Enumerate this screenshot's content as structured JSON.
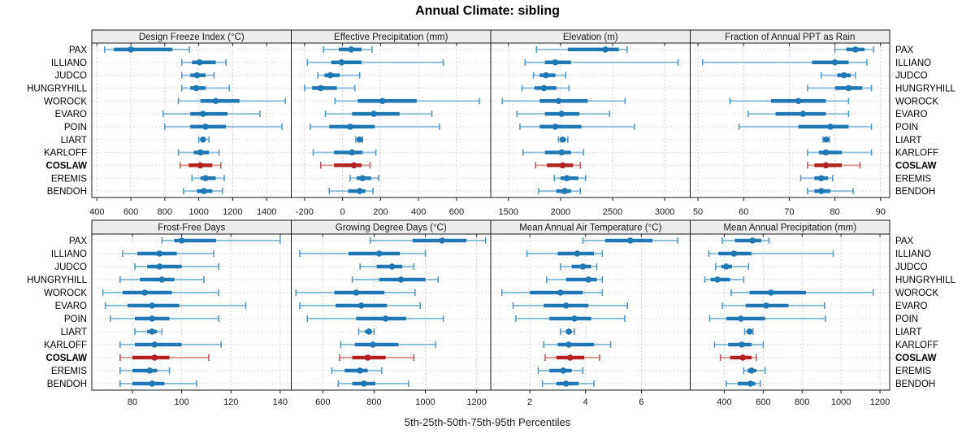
{
  "title": "Annual Climate: sibling",
  "footer": "5th-25th-50th-75th-95th Percentiles",
  "highlight_station": "COSLAW",
  "colors": {
    "series": "#1f77b4",
    "series_whisker": "#90bedd",
    "series_cap": "#4d94c6",
    "highlight": "#b22222",
    "highlight_whisker": "#dc9a96",
    "highlight_cap": "#c0504d",
    "header_bg": "#ececec",
    "panel_border": "#1a1a1a",
    "grid": "#c9c9c9",
    "row_grid": "#d6d6d6",
    "tick_text": "#1a1a1a"
  },
  "chart_data": {
    "type": "scatter",
    "subtype": "trellis-percentile-dotplot",
    "percentile_labels": [
      "5th",
      "25th",
      "50th",
      "75th",
      "95th"
    ],
    "legend_position": "none",
    "grid": "dotted",
    "categories": [
      "PAX",
      "ILLIANO",
      "JUDCO",
      "HUNGRYHILL",
      "WOROCK",
      "EVARO",
      "POIN",
      "LIART",
      "KARLOFF",
      "COSLAW",
      "EREMIS",
      "BENDOH"
    ],
    "panels": [
      {
        "title": "Design Freeze Index (°C)",
        "row": 0,
        "col": 0,
        "xlim": [
          370,
          1545
        ],
        "xticks": [
          400,
          600,
          800,
          1000,
          1200,
          1400
        ],
        "values": [
          [
            445,
            500,
            600,
            845,
            945
          ],
          [
            900,
            960,
            1005,
            1100,
            1160
          ],
          [
            900,
            950,
            990,
            1040,
            1090
          ],
          [
            900,
            950,
            985,
            1040,
            1180
          ],
          [
            880,
            1010,
            1100,
            1240,
            1510
          ],
          [
            790,
            950,
            1025,
            1170,
            1360
          ],
          [
            800,
            950,
            1040,
            1160,
            1490
          ],
          [
            1000,
            1015,
            1025,
            1040,
            1060
          ],
          [
            880,
            970,
            1010,
            1060,
            1120
          ],
          [
            890,
            940,
            1010,
            1080,
            1130
          ],
          [
            960,
            1010,
            1040,
            1100,
            1150
          ],
          [
            910,
            990,
            1030,
            1080,
            1140
          ]
        ]
      },
      {
        "title": "Effective Precipitation (mm)",
        "row": 0,
        "col": 1,
        "xlim": [
          -270,
          780
        ],
        "xticks": [
          -200,
          0,
          200,
          400,
          600
        ],
        "values": [
          [
            -100,
            -20,
            45,
            100,
            155
          ],
          [
            -185,
            -60,
            -5,
            100,
            530
          ],
          [
            -130,
            -95,
            -65,
            -15,
            90
          ],
          [
            -200,
            -160,
            -115,
            -30,
            65
          ],
          [
            -40,
            80,
            210,
            390,
            720
          ],
          [
            -90,
            50,
            165,
            300,
            470
          ],
          [
            -170,
            -70,
            40,
            170,
            510
          ],
          [
            70,
            82,
            90,
            98,
            105
          ],
          [
            -155,
            -45,
            50,
            105,
            175
          ],
          [
            -115,
            -45,
            60,
            100,
            145
          ],
          [
            40,
            75,
            105,
            150,
            190
          ],
          [
            -70,
            30,
            90,
            120,
            160
          ]
        ]
      },
      {
        "title": "Elevation (m)",
        "row": 0,
        "col": 2,
        "xlim": [
          1330,
          3245
        ],
        "xticks": [
          1500,
          2000,
          2500,
          3000
        ],
        "values": [
          [
            1770,
            2070,
            2430,
            2560,
            2640
          ],
          [
            1660,
            1850,
            1950,
            2100,
            3130
          ],
          [
            1740,
            1800,
            1860,
            1950,
            2050
          ],
          [
            1630,
            1750,
            1840,
            1960,
            2080
          ],
          [
            1440,
            1800,
            1980,
            2260,
            2620
          ],
          [
            1580,
            1850,
            2010,
            2180,
            2470
          ],
          [
            1610,
            1800,
            1950,
            2200,
            2710
          ],
          [
            1980,
            2000,
            2020,
            2050,
            2070
          ],
          [
            1640,
            1850,
            2010,
            2100,
            2220
          ],
          [
            1760,
            1870,
            2020,
            2120,
            2190
          ],
          [
            1940,
            2000,
            2060,
            2170,
            2240
          ],
          [
            1790,
            1960,
            2040,
            2100,
            2190
          ]
        ]
      },
      {
        "title": "Fraction of Annual PPT as Rain",
        "row": 0,
        "col": 3,
        "xlim": [
          48.3,
          92
        ],
        "xticks": [
          50,
          60,
          70,
          80,
          90
        ],
        "values": [
          [
            80,
            82.5,
            84.5,
            86.5,
            88.5
          ],
          [
            51,
            75,
            80,
            83,
            87
          ],
          [
            77,
            80.5,
            82,
            83.5,
            84.5
          ],
          [
            74,
            80,
            83,
            86,
            88
          ],
          [
            57,
            66,
            72,
            78,
            83
          ],
          [
            61,
            67,
            73,
            78,
            83
          ],
          [
            59,
            72,
            79,
            83,
            88
          ],
          [
            77.4,
            77.8,
            78.1,
            78.5,
            78.8
          ],
          [
            74,
            76.5,
            78,
            81.5,
            88
          ],
          [
            74,
            75.5,
            78,
            81.5,
            85.5
          ],
          [
            72.5,
            75.5,
            77,
            78.5,
            79.5
          ],
          [
            74,
            75.5,
            77,
            79,
            84
          ]
        ]
      },
      {
        "title": "Frost-Free Days",
        "row": 1,
        "col": 0,
        "xlim": [
          63.5,
          144.5
        ],
        "xticks": [
          80,
          100,
          120,
          140
        ],
        "values": [
          [
            92,
            97,
            100,
            114,
            140
          ],
          [
            76,
            82,
            91,
            98,
            113
          ],
          [
            81,
            86,
            91,
            100,
            115
          ],
          [
            75,
            83,
            92,
            97,
            109
          ],
          [
            68,
            76,
            85,
            96,
            115
          ],
          [
            69,
            78,
            88,
            99,
            126
          ],
          [
            71,
            81,
            88,
            95,
            115
          ],
          [
            81,
            86,
            88,
            90,
            92
          ],
          [
            75,
            81,
            89,
            100,
            116
          ],
          [
            75,
            80,
            89,
            95,
            111
          ],
          [
            75,
            80,
            87,
            90,
            95
          ],
          [
            75,
            80,
            88,
            93,
            106
          ]
        ]
      },
      {
        "title": "Growing Degree Days (°C)",
        "row": 1,
        "col": 1,
        "xlim": [
          477,
          1255
        ],
        "xticks": [
          600,
          800,
          1000,
          1200
        ],
        "values": [
          [
            785,
            950,
            1065,
            1160,
            1235
          ],
          [
            510,
            700,
            820,
            900,
            1000
          ],
          [
            745,
            810,
            870,
            910,
            955
          ],
          [
            715,
            820,
            905,
            1000,
            1050
          ],
          [
            495,
            645,
            730,
            840,
            960
          ],
          [
            510,
            650,
            750,
            850,
            980
          ],
          [
            540,
            730,
            845,
            925,
            1070
          ],
          [
            740,
            765,
            780,
            790,
            800
          ],
          [
            670,
            725,
            795,
            895,
            1040
          ],
          [
            665,
            715,
            775,
            845,
            955
          ],
          [
            635,
            685,
            745,
            775,
            830
          ],
          [
            660,
            715,
            760,
            805,
            935
          ]
        ]
      },
      {
        "title": "Mean Annual Air Temperature (°C)",
        "row": 1,
        "col": 2,
        "xlim": [
          0.6,
          7.75
        ],
        "xticks": [
          2,
          4,
          6
        ],
        "values": [
          [
            3.9,
            4.7,
            5.6,
            6.4,
            7.3
          ],
          [
            1.9,
            3.0,
            3.7,
            4.3,
            4.6
          ],
          [
            3.1,
            3.5,
            3.9,
            4.2,
            4.4
          ],
          [
            2.6,
            3.3,
            4.1,
            4.4,
            4.6
          ],
          [
            1.0,
            2.0,
            3.1,
            3.9,
            4.6
          ],
          [
            1.4,
            2.5,
            3.3,
            4.1,
            5.5
          ],
          [
            1.5,
            2.7,
            3.6,
            4.2,
            5.4
          ],
          [
            3.1,
            3.3,
            3.4,
            3.5,
            3.6
          ],
          [
            2.5,
            3.0,
            3.4,
            4.3,
            4.9
          ],
          [
            2.55,
            2.95,
            3.45,
            3.95,
            4.5
          ],
          [
            2.3,
            2.7,
            3.2,
            3.5,
            3.9
          ],
          [
            2.45,
            2.95,
            3.3,
            3.75,
            4.3
          ]
        ]
      },
      {
        "title": "Mean Annual Precipitation (mm)",
        "row": 1,
        "col": 3,
        "xlim": [
          225,
          1250
        ],
        "xticks": [
          400,
          600,
          800,
          1000,
          1200
        ],
        "values": [
          [
            390,
            455,
            545,
            590,
            630
          ],
          [
            320,
            370,
            450,
            540,
            960
          ],
          [
            355,
            385,
            410,
            440,
            525
          ],
          [
            300,
            330,
            365,
            430,
            500
          ],
          [
            435,
            530,
            640,
            820,
            1165
          ],
          [
            390,
            510,
            615,
            730,
            915
          ],
          [
            325,
            410,
            485,
            610,
            920
          ],
          [
            505,
            520,
            530,
            540,
            548
          ],
          [
            350,
            420,
            490,
            540,
            600
          ],
          [
            380,
            430,
            495,
            540,
            565
          ],
          [
            500,
            520,
            540,
            565,
            610
          ],
          [
            410,
            470,
            535,
            560,
            585
          ]
        ]
      }
    ]
  }
}
